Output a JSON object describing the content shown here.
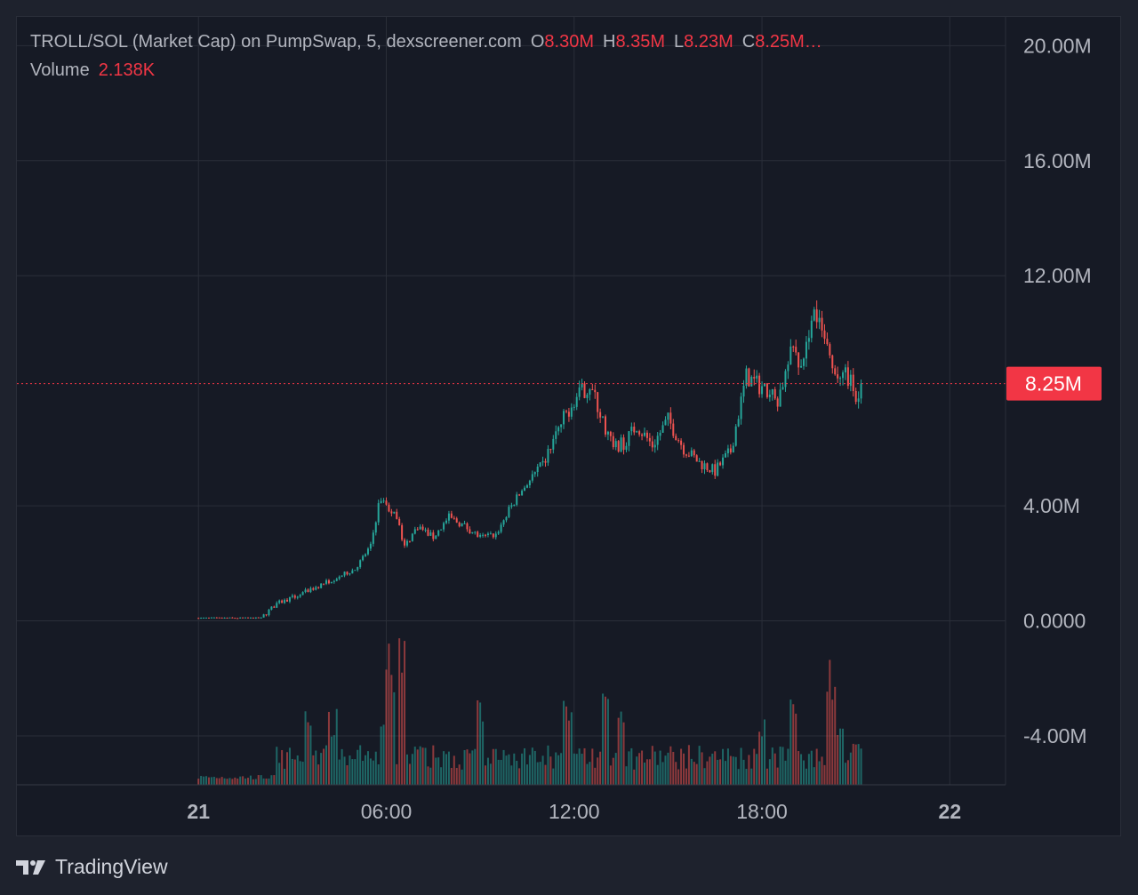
{
  "header": {
    "symbol_title": "TROLL/SOL (Market Cap) on PumpSwap, 5, dexscreener.com",
    "o_label": "O",
    "o_value": "8.30M",
    "h_label": "H",
    "h_value": "8.35M",
    "l_label": "L",
    "l_value": "8.23M",
    "c_label": "C",
    "c_value": "8.25M…",
    "volume_label": "Volume",
    "volume_value": "2.138K"
  },
  "watermark": {
    "text": "TradingView",
    "icon": "tradingview-logo-icon"
  },
  "colors": {
    "background": "#161a25",
    "grid": "#2a2e39",
    "up": "#26a69a",
    "down": "#ef5350",
    "price_line": "#f23645",
    "axis_text": "#b2b5be"
  },
  "chart_data": {
    "type": "candlestick",
    "timeframe": "5",
    "unit": "market cap (SOL)",
    "grid": true,
    "y_axis": {
      "ticks": [
        "20.00M",
        "16.00M",
        "12.00M",
        "8.25M",
        "4.00M",
        "0.0000",
        "-4.00M"
      ],
      "tick_values": [
        20,
        16,
        12,
        4,
        0,
        -4
      ],
      "range": [
        -5.7,
        21
      ]
    },
    "x_axis": {
      "ticks": [
        "21",
        "06:00",
        "12:00",
        "18:00",
        "22"
      ],
      "tick_hours": [
        0,
        6,
        12,
        18,
        24
      ],
      "range_hours": [
        -5.8,
        29.5
      ]
    },
    "current_price": {
      "label": "8.25M",
      "value": 8.25
    },
    "trend_hours": [
      0,
      2,
      2.5,
      3,
      4,
      5,
      5.5,
      5.8,
      6.3,
      6.6,
      7,
      7.5,
      8,
      8.5,
      9,
      9.5,
      10,
      10.5,
      11,
      11.5,
      12,
      12.5,
      13,
      13.3,
      13.6,
      14,
      14.5,
      15,
      15.5,
      16,
      16.5,
      17,
      17.5,
      18,
      18.5,
      19,
      19.3,
      19.6,
      20,
      20.3,
      20.7,
      21,
      21.2
    ],
    "trend_values": [
      0.1,
      0.1,
      0.6,
      0.8,
      1.3,
      1.8,
      2.6,
      4.3,
      3.6,
      2.6,
      3.3,
      2.9,
      3.6,
      3.3,
      2.9,
      3.0,
      4.0,
      4.8,
      5.4,
      6.7,
      7.7,
      8.2,
      6.7,
      6.0,
      6.2,
      6.8,
      6.1,
      7.0,
      6.0,
      5.5,
      5.2,
      5.9,
      8.5,
      8.1,
      7.7,
      9.5,
      8.6,
      10.9,
      9.7,
      8.4,
      8.6,
      7.9,
      8.25
    ],
    "volume_hours": [
      2.5,
      3.5,
      4.3,
      5.9,
      6.1,
      6.5,
      9.0,
      11.8,
      13.0,
      13.5,
      18.0,
      19.0,
      20.2,
      20.5,
      21.0
    ],
    "volume_peaks": [
      10,
      30,
      30,
      25,
      60,
      68,
      35,
      40,
      40,
      36,
      26,
      42,
      56,
      32,
      20
    ],
    "volume_last": {
      "label": "2.138K",
      "value": 2.138
    }
  }
}
